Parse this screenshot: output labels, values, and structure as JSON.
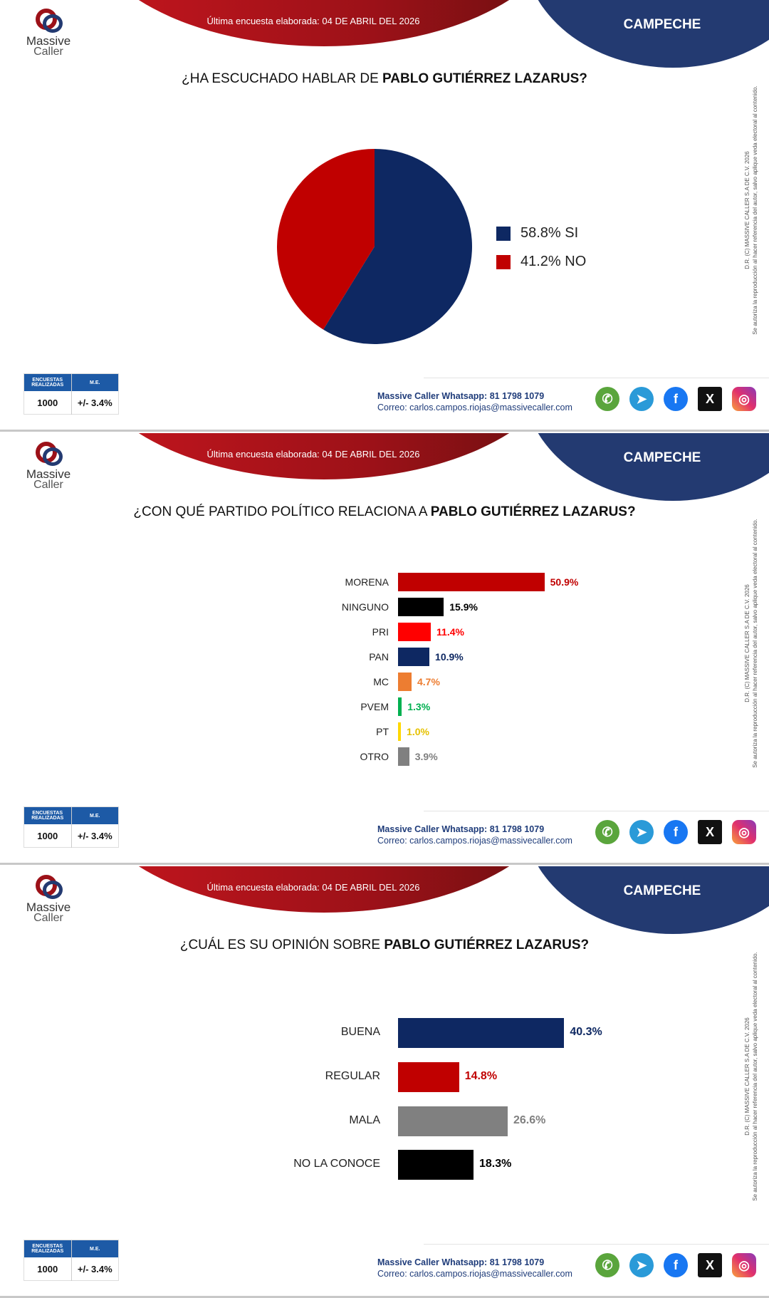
{
  "header": {
    "survey_date": "Última encuesta elaborada: 04 DE ABRIL DEL 2026",
    "state": "CAMPECHE",
    "logo_line1": "Massive",
    "logo_line2": "Caller"
  },
  "watermark": {
    "line1": "D.R. (C) MASSIVE CALLER S.A DE C.V. 2026",
    "line2": "Se autoriza la reproducción al hacer referencia del autor, salvo aplique veda electoral al contenido."
  },
  "footer": {
    "col1": "ENCUESTAS REALIZADAS",
    "col2": "M.E.",
    "surveys": "1000",
    "margin": "+/- 3.4%",
    "whatsapp": "Massive Caller Whatsapp: 81 1798 1079",
    "email": "Correo: carlos.campos.riojas@massivecaller.com"
  },
  "colors": {
    "red": "#c00000",
    "navy": "#0e2862"
  },
  "chart_data": [
    {
      "type": "pie",
      "title_prefix": "¿HA ESCUCHADO HABLAR DE ",
      "title_bold": "PABLO GUTIÉRREZ LAZARUS?",
      "slices": [
        {
          "label": "58.8% SI",
          "value": 58.8,
          "color": "#0e2862"
        },
        {
          "label": "41.2% NO",
          "value": 41.2,
          "color": "#c00000"
        }
      ]
    },
    {
      "type": "bar",
      "title_prefix": "¿CON QUÉ PARTIDO POLÍTICO RELACIONA A ",
      "title_bold": "PABLO GUTIÉRREZ LAZARUS?",
      "categories": [
        "MORENA",
        "NINGUNO",
        "PRI",
        "PAN",
        "MC",
        "PVEM",
        "PT",
        "OTRO"
      ],
      "values": [
        50.9,
        15.9,
        11.4,
        10.9,
        4.7,
        1.3,
        1.0,
        3.9
      ],
      "labels": [
        "50.9%",
        "15.9%",
        "11.4%",
        "10.9%",
        "4.7%",
        "1.3%",
        "1.0%",
        "3.9%"
      ],
      "colors": [
        "#c00000",
        "#000000",
        "#ff0000",
        "#0e2862",
        "#ed7d31",
        "#00b050",
        "#ffd800",
        "#808080"
      ],
      "label_colors": [
        "#c00000",
        "#000000",
        "#ff0000",
        "#0e2862",
        "#ed7d31",
        "#00b050",
        "#e6c200",
        "#808080"
      ]
    },
    {
      "type": "bar",
      "title_prefix": "¿CUÁL ES SU OPINIÓN SOBRE ",
      "title_bold": "PABLO GUTIÉRREZ LAZARUS?",
      "categories": [
        "BUENA",
        "REGULAR",
        "MALA",
        "NO LA CONOCE"
      ],
      "values": [
        40.3,
        14.8,
        26.6,
        18.3
      ],
      "labels": [
        "40.3%",
        "14.8%",
        "26.6%",
        "18.3%"
      ],
      "colors": [
        "#0e2862",
        "#c00000",
        "#808080",
        "#000000"
      ],
      "label_colors": [
        "#0e2862",
        "#c00000",
        "#808080",
        "#000000"
      ]
    }
  ]
}
